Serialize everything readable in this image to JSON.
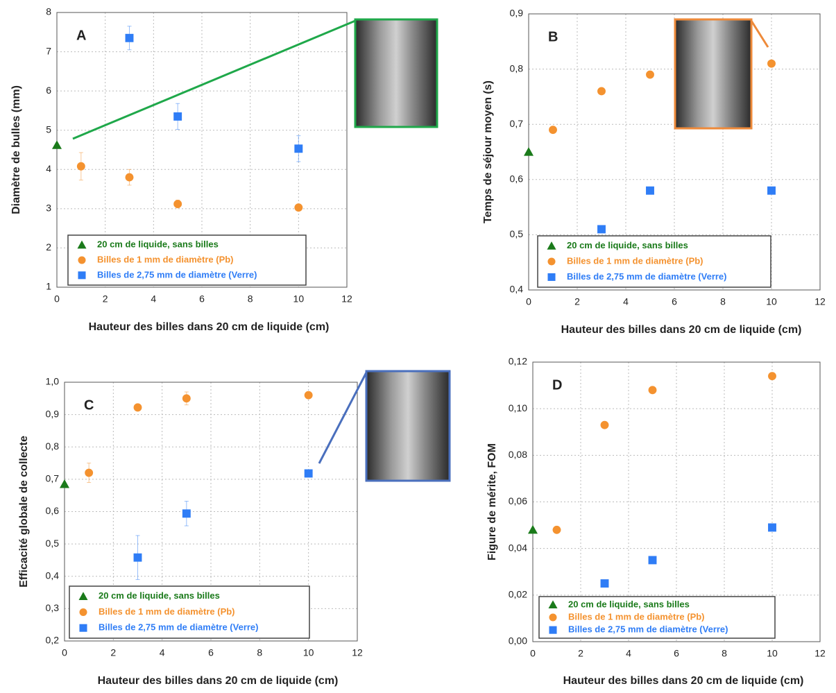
{
  "chart_data": [
    {
      "type": "scatter",
      "panel_label": "A",
      "y_label": "Diamètre de bulles (mm)",
      "x_label": "Hauteur des billes dans 20 cm de liquide (cm)",
      "xlim": [
        0,
        12
      ],
      "xticks": [
        0,
        2,
        4,
        6,
        8,
        10,
        12
      ],
      "ylim": [
        1,
        8
      ],
      "yticks": [
        1,
        2,
        3,
        4,
        5,
        6,
        7,
        8
      ],
      "grid": true,
      "legend": "lower left",
      "series": [
        {
          "name": "20 cm de liquide, sans billes",
          "color": "#1a7a1a",
          "marker": "triangle",
          "x": [
            0
          ],
          "values": [
            4.62
          ]
        },
        {
          "name": "Billes de 1 mm de diamètre (Pb)",
          "color": "#f4922f",
          "marker": "circle",
          "x": [
            1,
            3,
            5,
            10
          ],
          "values": [
            4.08,
            3.8,
            3.12,
            3.03
          ],
          "errors": [
            0.35,
            0.2,
            0.1,
            null
          ]
        },
        {
          "name": "Billes de 2,75 mm de diamètre (Verre)",
          "color": "#2f7df6",
          "marker": "square",
          "x": [
            3,
            5,
            10
          ],
          "values": [
            7.35,
            5.35,
            4.53
          ],
          "errors": [
            0.3,
            0.33,
            0.33
          ]
        }
      ]
    },
    {
      "type": "scatter",
      "panel_label": "B",
      "y_label": "Temps de séjour moyen (s)",
      "x_label": "Hauteur des billes dans 20 cm de liquide (cm)",
      "xlim": [
        0,
        12
      ],
      "xticks": [
        0,
        2,
        4,
        6,
        8,
        10,
        12
      ],
      "ylim": [
        0.4,
        0.9
      ],
      "yticks": [
        {
          "value": 0.4,
          "label": "0,4"
        },
        {
          "value": 0.5,
          "label": "0,5"
        },
        {
          "value": 0.6,
          "label": "0,6"
        },
        {
          "value": 0.7,
          "label": "0,7"
        },
        {
          "value": 0.8,
          "label": "0,8"
        },
        {
          "value": 0.9,
          "label": "0,9"
        }
      ],
      "grid": true,
      "legend": "lower left",
      "series": [
        {
          "name": "20 cm de liquide, sans billes",
          "color": "#1a7a1a",
          "marker": "triangle",
          "x": [
            0
          ],
          "values": [
            0.65
          ]
        },
        {
          "name": "Billes de 1 mm de diamètre (Pb)",
          "color": "#f4922f",
          "marker": "circle",
          "x": [
            1,
            3,
            5,
            10
          ],
          "values": [
            0.69,
            0.76,
            0.79,
            0.81
          ]
        },
        {
          "name": "Billes de 2,75 mm de diamètre (Verre)",
          "color": "#2f7df6",
          "marker": "square",
          "x": [
            3,
            5,
            10
          ],
          "values": [
            0.51,
            0.58,
            0.58
          ]
        }
      ]
    },
    {
      "type": "scatter",
      "panel_label": "C",
      "y_label": "Efficacité globale de collecte",
      "x_label": "Hauteur des billes dans 20 cm de liquide (cm)",
      "xlim": [
        0,
        12
      ],
      "xticks": [
        0,
        2,
        4,
        6,
        8,
        10,
        12
      ],
      "ylim": [
        0.2,
        1.0
      ],
      "yticks": [
        {
          "value": 0.2,
          "label": "0,2"
        },
        {
          "value": 0.3,
          "label": "0,3"
        },
        {
          "value": 0.4,
          "label": "0,4"
        },
        {
          "value": 0.5,
          "label": "0,5"
        },
        {
          "value": 0.6,
          "label": "0,6"
        },
        {
          "value": 0.7,
          "label": "0,7"
        },
        {
          "value": 0.8,
          "label": "0,8"
        },
        {
          "value": 0.9,
          "label": "0,9"
        },
        {
          "value": 1.0,
          "label": "1,0"
        }
      ],
      "grid": true,
      "legend": "lower left",
      "series": [
        {
          "name": "20 cm de liquide, sans billes",
          "color": "#1a7a1a",
          "marker": "triangle",
          "x": [
            0
          ],
          "values": [
            0.685
          ]
        },
        {
          "name": "Billes de 1 mm de diamètre (Pb)",
          "color": "#f4922f",
          "marker": "circle",
          "x": [
            1,
            3,
            5,
            10
          ],
          "values": [
            0.72,
            0.922,
            0.95,
            0.96
          ],
          "errors": [
            0.03,
            null,
            0.02,
            null
          ]
        },
        {
          "name": "Billes de 2,75 mm de diamètre (Verre)",
          "color": "#2f7df6",
          "marker": "square",
          "x": [
            3,
            5,
            10
          ],
          "values": [
            0.458,
            0.594,
            0.718
          ],
          "errors": [
            0.068,
            0.038,
            0.01
          ]
        }
      ]
    },
    {
      "type": "scatter",
      "panel_label": "D",
      "y_label": "Figure de mérite, FOM",
      "x_label": "Hauteur des billes dans 20 cm de liquide (cm)",
      "xlim": [
        0,
        12
      ],
      "xticks": [
        0,
        2,
        4,
        6,
        8,
        10,
        12
      ],
      "ylim": [
        0,
        0.12
      ],
      "yticks": [
        {
          "value": 0,
          "label": "0,00"
        },
        {
          "value": 0.02,
          "label": "0,02"
        },
        {
          "value": 0.04,
          "label": "0,04"
        },
        {
          "value": 0.06,
          "label": "0,06"
        },
        {
          "value": 0.08,
          "label": "0,08"
        },
        {
          "value": 0.1,
          "label": "0,10"
        },
        {
          "value": 0.12,
          "label": "0,12"
        }
      ],
      "grid": true,
      "legend": "lower left",
      "series": [
        {
          "name": "20 cm de liquide, sans billes",
          "color": "#1a7a1a",
          "marker": "triangle",
          "x": [
            0
          ],
          "values": [
            0.048
          ]
        },
        {
          "name": "Billes de 1 mm de diamètre (Pb)",
          "color": "#f4922f",
          "marker": "circle",
          "x": [
            1,
            3,
            5,
            10
          ],
          "values": [
            0.048,
            0.093,
            0.108,
            0.114
          ]
        },
        {
          "name": "Billes de 2,75 mm de diamètre (Verre)",
          "color": "#2f7df6",
          "marker": "square",
          "x": [
            3,
            5,
            10
          ],
          "values": [
            0.025,
            0.035,
            0.049
          ]
        }
      ]
    }
  ]
}
